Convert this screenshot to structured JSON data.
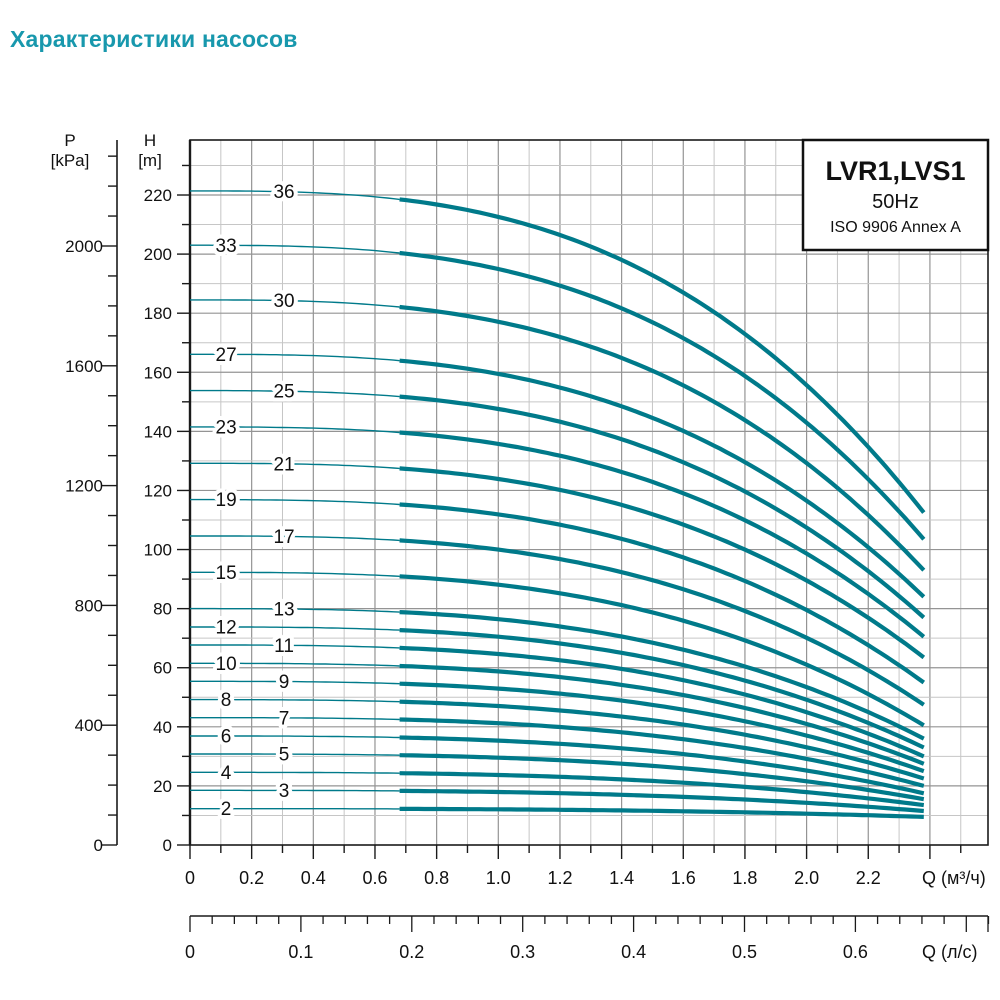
{
  "page_title": "Характеристики насосов",
  "chart_data": {
    "type": "line",
    "title": "Характеристики насосов",
    "legend_box": {
      "model": "LVR1,LVS1",
      "frequency": "50Hz",
      "standard": "ISO 9906 Annex A"
    },
    "axes": {
      "pressure": {
        "name": "P",
        "unit": "[kPa]",
        "tick_labels": [
          0,
          400,
          800,
          1200,
          1600,
          2000
        ],
        "minor_step": 100,
        "max": 2350
      },
      "head": {
        "name": "H",
        "unit": "[m]",
        "tick_labels": [
          0,
          20,
          40,
          60,
          80,
          100,
          120,
          140,
          160,
          180,
          200,
          220
        ],
        "minor_step": 10,
        "max": 235
      },
      "flow_m3h": {
        "unit_label": "Q (м³/ч)",
        "tick_labels": [
          "0",
          "0.2",
          "0.4",
          "0.6",
          "0.8",
          "1.0",
          "1.2",
          "1.4",
          "1.6",
          "1.8",
          "2.0",
          "2.2"
        ],
        "minor_step": 0.1,
        "major_step": 0.2,
        "max": 2.58
      },
      "flow_ls": {
        "unit_label": "Q (л/с)",
        "tick_labels": [
          "0",
          "0.1",
          "0.2",
          "0.3",
          "0.4",
          "0.5",
          "0.6"
        ],
        "minor_step": 0.02,
        "major_step": 0.1,
        "max": 0.72
      }
    },
    "q_end": 2.38,
    "q_thick_start": 0.68,
    "droop_exponent": 2.9,
    "curves": [
      {
        "label": "36",
        "h0": 221.4,
        "h_end": 112.5,
        "label_pos": "far"
      },
      {
        "label": "33",
        "h0": 203.0,
        "h_end": 103.5,
        "label_pos": "near"
      },
      {
        "label": "30",
        "h0": 184.5,
        "h_end": 93.0,
        "label_pos": "far"
      },
      {
        "label": "27",
        "h0": 166.1,
        "h_end": 84.0,
        "label_pos": "near"
      },
      {
        "label": "25",
        "h0": 153.8,
        "h_end": 77.0,
        "label_pos": "far"
      },
      {
        "label": "23",
        "h0": 141.5,
        "h_end": 70.5,
        "label_pos": "near"
      },
      {
        "label": "21",
        "h0": 129.2,
        "h_end": 63.5,
        "label_pos": "far"
      },
      {
        "label": "19",
        "h0": 116.9,
        "h_end": 55.0,
        "label_pos": "near"
      },
      {
        "label": "17",
        "h0": 104.6,
        "h_end": 47.5,
        "label_pos": "far"
      },
      {
        "label": "15",
        "h0": 92.3,
        "h_end": 40.5,
        "label_pos": "near"
      },
      {
        "label": "13",
        "h0": 80.0,
        "h_end": 36.0,
        "label_pos": "far"
      },
      {
        "label": "12",
        "h0": 73.8,
        "h_end": 33.0,
        "label_pos": "near"
      },
      {
        "label": "11",
        "h0": 67.7,
        "h_end": 30.0,
        "label_pos": "far"
      },
      {
        "label": "10",
        "h0": 61.5,
        "h_end": 27.5,
        "label_pos": "near"
      },
      {
        "label": "9",
        "h0": 55.4,
        "h_end": 25.0,
        "label_pos": "far"
      },
      {
        "label": "8",
        "h0": 49.2,
        "h_end": 22.5,
        "label_pos": "near"
      },
      {
        "label": "7",
        "h0": 43.1,
        "h_end": 20.0,
        "label_pos": "far"
      },
      {
        "label": "6",
        "h0": 36.9,
        "h_end": 17.5,
        "label_pos": "near"
      },
      {
        "label": "5",
        "h0": 30.8,
        "h_end": 15.5,
        "label_pos": "far"
      },
      {
        "label": "4",
        "h0": 24.6,
        "h_end": 13.5,
        "label_pos": "near"
      },
      {
        "label": "3",
        "h0": 18.5,
        "h_end": 11.5,
        "label_pos": "far"
      },
      {
        "label": "2",
        "h0": 12.3,
        "h_end": 9.5,
        "label_pos": "near"
      }
    ],
    "colors": {
      "curve": "#007a8a",
      "title": "#1898ad",
      "grid_minor": "#c6c6c6",
      "grid_major": "#949494",
      "axis": "#1a1a1a"
    }
  }
}
